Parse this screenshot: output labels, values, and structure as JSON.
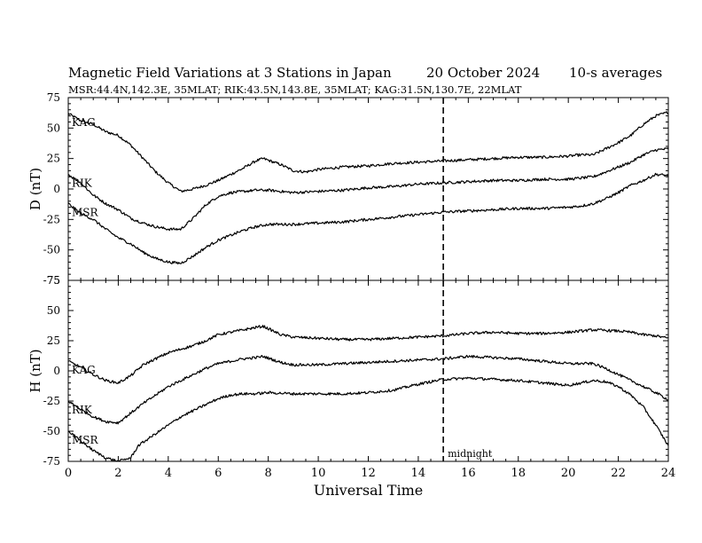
{
  "header": {
    "title": "Magnetic Field Variations at 3 Stations in Japan",
    "date": "20 October 2024",
    "averaging": "10-s averages",
    "subtitle": "MSR:44.4N,142.3E, 35MLAT;  RIK:43.5N,143.8E, 35MLAT;  KAG:31.5N,130.7E, 22MLAT"
  },
  "chart_data": [
    {
      "type": "line",
      "panel": "top",
      "ylabel": "D (nT)",
      "xlabel": "",
      "xlim": [
        0,
        24
      ],
      "ylim": [
        -75,
        75
      ],
      "xticks": [
        0,
        2,
        4,
        6,
        8,
        10,
        12,
        14,
        16,
        18,
        20,
        22,
        24
      ],
      "yticks": [
        -75,
        -50,
        -25,
        0,
        25,
        50,
        75
      ],
      "grid": false,
      "vline": {
        "x": 15,
        "style": "dashed"
      },
      "series": [
        {
          "name": "KAG",
          "x": [
            0,
            0.5,
            1,
            1.5,
            2,
            2.5,
            3,
            3.5,
            4,
            4.5,
            5,
            5.5,
            6,
            6.5,
            7,
            7.5,
            7.8,
            8.5,
            9,
            9.5,
            10,
            11,
            12,
            13,
            14,
            15,
            16,
            17,
            18,
            19,
            20,
            20.5,
            21,
            21.5,
            22,
            22.5,
            23,
            23.5,
            24
          ],
          "y": [
            62,
            56,
            53,
            47,
            44,
            36,
            25,
            14,
            5,
            -2,
            0,
            3,
            7,
            12,
            17,
            23,
            25,
            20,
            15,
            14,
            16,
            18,
            19,
            21,
            22,
            23,
            24,
            25,
            26,
            26,
            27,
            28,
            28,
            33,
            38,
            44,
            53,
            60,
            63
          ]
        },
        {
          "name": "RIK",
          "x": [
            0,
            0.5,
            1,
            1.5,
            2,
            2.5,
            3,
            3.5,
            4,
            4.5,
            5,
            5.5,
            6,
            6.5,
            7,
            7.5,
            8,
            8.5,
            9,
            10,
            11,
            12,
            13,
            14,
            15,
            16,
            17,
            18,
            19,
            20,
            20.5,
            21,
            21.5,
            22,
            22.5,
            23,
            23.5,
            24
          ],
          "y": [
            12,
            5,
            -5,
            -12,
            -17,
            -24,
            -28,
            -31,
            -33,
            -33,
            -24,
            -13,
            -6,
            -3,
            -2,
            -1,
            -1,
            -2,
            -3,
            -2,
            -1,
            1,
            2,
            4,
            5,
            6,
            7,
            7,
            8,
            8,
            9,
            10,
            14,
            18,
            22,
            28,
            32,
            33
          ]
        },
        {
          "name": "MSR",
          "x": [
            0,
            0.5,
            1,
            1.5,
            2,
            2.5,
            3,
            3.5,
            4,
            4.5,
            5,
            5.5,
            6,
            6.5,
            7,
            7.5,
            8,
            9,
            10,
            11,
            12,
            13,
            14,
            15,
            16,
            17,
            18,
            19,
            20,
            20.5,
            21,
            21.5,
            22,
            22.5,
            23,
            23.5,
            24
          ],
          "y": [
            -12,
            -20,
            -25,
            -33,
            -40,
            -45,
            -52,
            -57,
            -60,
            -61,
            -55,
            -48,
            -42,
            -38,
            -34,
            -31,
            -29,
            -29,
            -28,
            -27,
            -25,
            -23,
            -21,
            -19,
            -18,
            -17,
            -16,
            -16,
            -15,
            -14,
            -12,
            -8,
            -3,
            3,
            7,
            12,
            11
          ]
        }
      ]
    },
    {
      "type": "line",
      "panel": "bottom",
      "ylabel": "H (nT)",
      "xlabel": "Universal Time",
      "xlim": [
        0,
        24
      ],
      "ylim": [
        -75,
        75
      ],
      "xticks": [
        0,
        2,
        4,
        6,
        8,
        10,
        12,
        14,
        16,
        18,
        20,
        22,
        24
      ],
      "xticklabels": [
        "0",
        "2",
        "4",
        "6",
        "8",
        "10",
        "12",
        "14",
        "16",
        "18",
        "20",
        "22",
        "24"
      ],
      "yticks": [
        -75,
        -50,
        -25,
        0,
        25,
        50,
        75
      ],
      "grid": false,
      "vline": {
        "x": 15,
        "style": "dashed",
        "label": "midnight"
      },
      "series": [
        {
          "name": "KAG",
          "x": [
            0,
            0.5,
            1,
            1.5,
            2,
            2.5,
            3,
            3.5,
            4,
            4.5,
            5,
            5.5,
            6,
            6.5,
            7,
            7.5,
            7.8,
            8.5,
            9,
            10,
            11,
            12,
            13,
            14,
            15,
            16,
            17,
            18,
            19,
            20,
            20.5,
            21,
            22,
            22.5,
            23,
            23.5,
            24
          ],
          "y": [
            8,
            3,
            -3,
            -8,
            -10,
            -4,
            5,
            10,
            15,
            18,
            21,
            25,
            30,
            32,
            34,
            36,
            37,
            30,
            28,
            27,
            26,
            26,
            27,
            28,
            29,
            31,
            32,
            31,
            31,
            32,
            33,
            34,
            33,
            32,
            30,
            29,
            27
          ]
        },
        {
          "name": "RIK",
          "x": [
            0,
            0.5,
            1,
            1.5,
            2,
            2.5,
            3,
            3.5,
            4,
            4.5,
            5,
            5.5,
            6,
            6.5,
            7,
            7.5,
            7.8,
            8.5,
            9,
            10,
            11,
            12,
            13,
            14,
            15,
            16,
            17,
            18,
            19,
            20,
            20.5,
            21,
            21.5,
            22,
            22.5,
            23,
            23.5,
            24
          ],
          "y": [
            -25,
            -32,
            -38,
            -42,
            -43,
            -35,
            -27,
            -20,
            -13,
            -8,
            -3,
            2,
            6,
            8,
            10,
            11,
            12,
            7,
            5,
            5,
            6,
            7,
            8,
            9,
            10,
            12,
            11,
            10,
            8,
            6,
            6,
            6,
            2,
            -3,
            -8,
            -13,
            -18,
            -24
          ]
        },
        {
          "name": "MSR",
          "x": [
            0,
            0.5,
            1,
            1.5,
            2,
            2.5,
            2.8,
            3.5,
            4,
            4.5,
            5,
            5.5,
            6,
            6.5,
            7,
            7.5,
            8,
            9,
            10,
            11,
            12,
            13,
            14,
            15,
            16,
            17,
            18,
            19,
            20,
            20.5,
            21,
            21.5,
            22,
            22.5,
            23,
            23.5,
            24
          ],
          "y": [
            -50,
            -58,
            -66,
            -72,
            -75,
            -72,
            -62,
            -52,
            -45,
            -38,
            -33,
            -28,
            -23,
            -20,
            -19,
            -19,
            -18,
            -19,
            -19,
            -19,
            -18,
            -16,
            -11,
            -7,
            -6,
            -7,
            -8,
            -10,
            -12,
            -10,
            -8,
            -9,
            -13,
            -20,
            -30,
            -45,
            -62
          ]
        }
      ]
    }
  ]
}
